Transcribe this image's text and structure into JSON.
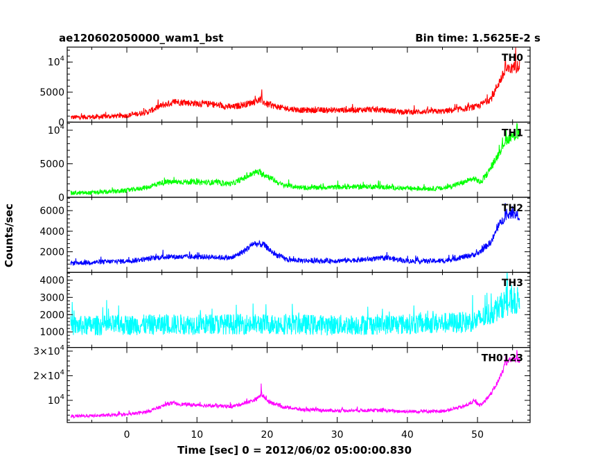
{
  "header": {
    "left_title": "ae120602050000_wam1_bst",
    "right_title": "Bin time: 1.5625E-2 s"
  },
  "chart_data": {
    "type": "line",
    "xlabel": "Time [sec] 0 = 2012/06/02 05:00:00.830",
    "ylabel": "Counts/sec",
    "xlim": [
      -8.5,
      57.5
    ],
    "x_ticks": [
      0,
      10,
      20,
      30,
      40,
      50
    ],
    "x_tick_labels": [
      "0",
      "10",
      "20",
      "30",
      "40",
      "50"
    ],
    "x_data_range": [
      -8.0,
      56.0
    ],
    "grid": false,
    "legend": "none",
    "panels": [
      {
        "label": "TH0",
        "color": "#ff0000",
        "ylim": [
          0,
          12500
        ],
        "ticks": [
          0,
          5000,
          10000
        ],
        "tick_labels": [
          {
            "base": "0"
          },
          {
            "base": "5000"
          },
          {
            "base": "10",
            "sup": "4"
          }
        ],
        "noise": 550,
        "points": [
          [
            -8,
            800
          ],
          [
            -4,
            900
          ],
          [
            0,
            1100
          ],
          [
            3,
            1700
          ],
          [
            5,
            2800
          ],
          [
            7,
            3400
          ],
          [
            9,
            3200
          ],
          [
            12,
            3000
          ],
          [
            15,
            2500
          ],
          [
            17,
            3000
          ],
          [
            19,
            3700
          ],
          [
            20,
            3000
          ],
          [
            22,
            2400
          ],
          [
            25,
            2000
          ],
          [
            30,
            2000
          ],
          [
            35,
            2100
          ],
          [
            40,
            1700
          ],
          [
            45,
            1800
          ],
          [
            48,
            2200
          ],
          [
            50,
            2600
          ],
          [
            52,
            4000
          ],
          [
            53,
            6500
          ],
          [
            54,
            8500
          ],
          [
            55,
            9000
          ],
          [
            56,
            9500
          ]
        ],
        "spikes": [
          [
            19.2,
            1800
          ],
          [
            54.0,
            3500
          ],
          [
            55.4,
            3000
          ]
        ]
      },
      {
        "label": "TH1",
        "color": "#00ff00",
        "ylim": [
          0,
          11200
        ],
        "ticks": [
          0,
          5000,
          10000
        ],
        "tick_labels": [
          {
            "base": "0"
          },
          {
            "base": "5000"
          },
          {
            "base": "10",
            "sup": "4"
          }
        ],
        "noise": 450,
        "points": [
          [
            -8,
            600
          ],
          [
            -4,
            700
          ],
          [
            0,
            1000
          ],
          [
            3,
            1500
          ],
          [
            5,
            2200
          ],
          [
            8,
            2300
          ],
          [
            12,
            2200
          ],
          [
            15,
            2000
          ],
          [
            17,
            3000
          ],
          [
            18.5,
            3800
          ],
          [
            20,
            3200
          ],
          [
            22,
            1900
          ],
          [
            25,
            1400
          ],
          [
            30,
            1500
          ],
          [
            35,
            1600
          ],
          [
            40,
            1300
          ],
          [
            45,
            1300
          ],
          [
            48,
            2200
          ],
          [
            49.5,
            2800
          ],
          [
            50.5,
            2200
          ],
          [
            52,
            4500
          ],
          [
            53,
            6500
          ],
          [
            54,
            8500
          ],
          [
            55,
            9000
          ],
          [
            56,
            9500
          ]
        ],
        "spikes": [
          [
            54.1,
            2000
          ],
          [
            55.6,
            1800
          ]
        ]
      },
      {
        "label": "TH2",
        "color": "#0000ff",
        "ylim": [
          0,
          7300
        ],
        "ticks": [
          2000,
          4000,
          6000
        ],
        "tick_labels": [
          {
            "base": "2000"
          },
          {
            "base": "4000"
          },
          {
            "base": "6000"
          }
        ],
        "noise": 300,
        "points": [
          [
            -8,
            900
          ],
          [
            -4,
            1000
          ],
          [
            0,
            1100
          ],
          [
            3,
            1300
          ],
          [
            5,
            1500
          ],
          [
            8,
            1500
          ],
          [
            12,
            1500
          ],
          [
            15,
            1400
          ],
          [
            17,
            2200
          ],
          [
            18,
            2800
          ],
          [
            19.5,
            2700
          ],
          [
            21,
            1800
          ],
          [
            23,
            1200
          ],
          [
            28,
            1100
          ],
          [
            33,
            1200
          ],
          [
            37,
            1400
          ],
          [
            40,
            1100
          ],
          [
            45,
            1100
          ],
          [
            48,
            1500
          ],
          [
            50,
            1800
          ],
          [
            52,
            3000
          ],
          [
            53,
            4500
          ],
          [
            54,
            5500
          ],
          [
            55,
            5700
          ],
          [
            56,
            5500
          ]
        ],
        "spikes": [
          [
            54.0,
            1500
          ],
          [
            55.2,
            1000
          ]
        ]
      },
      {
        "label": "TH3",
        "color": "#00ffff",
        "ylim": [
          100,
          4450
        ],
        "ticks": [
          1000,
          2000,
          3000,
          4000
        ],
        "tick_labels": [
          {
            "base": "1000"
          },
          {
            "base": "2000"
          },
          {
            "base": "3000"
          },
          {
            "base": "4000"
          }
        ],
        "noise": 600,
        "points": [
          [
            -8,
            1350
          ],
          [
            0,
            1400
          ],
          [
            10,
            1450
          ],
          [
            20,
            1450
          ],
          [
            30,
            1400
          ],
          [
            40,
            1450
          ],
          [
            48,
            1550
          ],
          [
            50,
            1650
          ],
          [
            52,
            2100
          ],
          [
            54,
            2700
          ],
          [
            56,
            2800
          ]
        ],
        "spikes": [
          [
            10.5,
            1300
          ],
          [
            21.0,
            1000
          ],
          [
            54.2,
            1200
          ]
        ]
      },
      {
        "label": "TH0123",
        "color": "#ff00ff",
        "ylim": [
          1000,
          31500
        ],
        "ticks": [
          10000,
          20000,
          30000
        ],
        "tick_labels": [
          {
            "base": "10",
            "sup": "4"
          },
          {
            "base": "2×10",
            "sup": "4"
          },
          {
            "base": "3×10",
            "sup": "4"
          }
        ],
        "noise": 800,
        "points": [
          [
            -8,
            3500
          ],
          [
            -4,
            3800
          ],
          [
            0,
            4200
          ],
          [
            3,
            5500
          ],
          [
            5,
            7500
          ],
          [
            6,
            8800
          ],
          [
            9,
            8200
          ],
          [
            12,
            7800
          ],
          [
            15,
            7500
          ],
          [
            17,
            9000
          ],
          [
            18.5,
            10500
          ],
          [
            19.2,
            12500
          ],
          [
            20,
            10000
          ],
          [
            22,
            7500
          ],
          [
            25,
            6200
          ],
          [
            30,
            5800
          ],
          [
            35,
            6000
          ],
          [
            40,
            5500
          ],
          [
            45,
            5600
          ],
          [
            48,
            7500
          ],
          [
            49.5,
            9500
          ],
          [
            50.5,
            8000
          ],
          [
            52,
            13000
          ],
          [
            53,
            18000
          ],
          [
            54,
            25000
          ],
          [
            55,
            27000
          ],
          [
            56,
            26000
          ]
        ],
        "spikes": [
          [
            19.2,
            4000
          ],
          [
            54.0,
            5000
          ],
          [
            55.6,
            4500
          ]
        ]
      }
    ]
  }
}
